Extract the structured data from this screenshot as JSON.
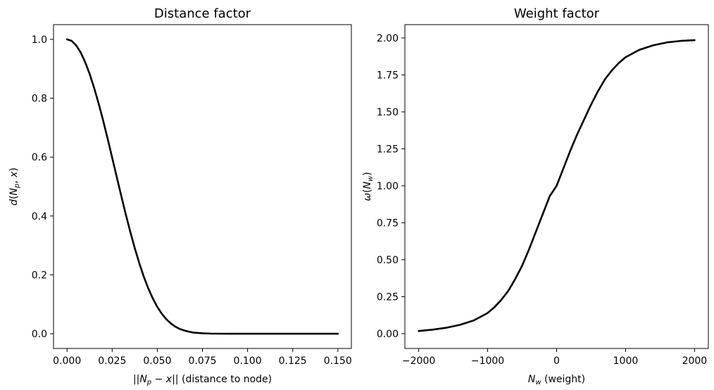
{
  "chart_data": [
    {
      "type": "line",
      "title": "Distance factor",
      "xlabel_parts": [
        {
          "t": "||",
          "style": "normal"
        },
        {
          "t": "N",
          "style": "italic"
        },
        {
          "t": "p",
          "style": "sub"
        },
        {
          "t": " − ",
          "style": "normal"
        },
        {
          "t": "x",
          "style": "italic"
        },
        {
          "t": "|| (distance to node)",
          "style": "normal"
        }
      ],
      "ylabel_parts": [
        {
          "t": "d",
          "style": "italic"
        },
        {
          "t": "(",
          "style": "normal"
        },
        {
          "t": "N",
          "style": "italic"
        },
        {
          "t": "p",
          "style": "sub"
        },
        {
          "t": ", ",
          "style": "normal"
        },
        {
          "t": "x",
          "style": "italic"
        },
        {
          "t": ")",
          "style": "normal"
        }
      ],
      "xlim": [
        -0.0075,
        0.1575
      ],
      "ylim": [
        -0.05,
        1.05
      ],
      "xticks": [
        0,
        0.025,
        0.05,
        0.075,
        0.1,
        0.125,
        0.15
      ],
      "xtick_labels": [
        "0.000",
        "0.025",
        "0.050",
        "0.075",
        "0.100",
        "0.125",
        "0.150"
      ],
      "yticks": [
        0,
        0.2,
        0.4,
        0.6,
        0.8,
        1.0
      ],
      "ytick_labels": [
        "0.0",
        "0.2",
        "0.4",
        "0.6",
        "0.8",
        "1.0"
      ],
      "grid": false,
      "color": "#000000",
      "series": [
        {
          "x": [
            0,
            0.0025,
            0.005,
            0.0075,
            0.01,
            0.0125,
            0.015,
            0.0175,
            0.02,
            0.0225,
            0.025,
            0.0275,
            0.03,
            0.0325,
            0.035,
            0.0375,
            0.04,
            0.0425,
            0.045,
            0.0475,
            0.05,
            0.0525,
            0.055,
            0.0575,
            0.06,
            0.0625,
            0.065,
            0.0675,
            0.07,
            0.075,
            0.08,
            0.085,
            0.09,
            0.1,
            0.11,
            0.12,
            0.13,
            0.14,
            0.15
          ],
          "y": [
            1.0,
            0.995,
            0.98,
            0.956,
            0.923,
            0.883,
            0.835,
            0.782,
            0.724,
            0.662,
            0.598,
            0.533,
            0.469,
            0.406,
            0.347,
            0.291,
            0.24,
            0.194,
            0.154,
            0.12,
            0.091,
            0.068,
            0.049,
            0.035,
            0.024,
            0.016,
            0.011,
            0.007,
            0.004,
            0.0015,
            0.0005,
            0.0002,
            0.0001,
            0,
            0,
            0,
            0,
            0,
            0
          ]
        }
      ]
    },
    {
      "type": "line",
      "title": "Weight factor",
      "xlabel_parts": [
        {
          "t": "N",
          "style": "italic"
        },
        {
          "t": "w",
          "style": "sub"
        },
        {
          "t": " (weight)",
          "style": "normal"
        }
      ],
      "ylabel_parts": [
        {
          "t": "ω",
          "style": "italic"
        },
        {
          "t": "(",
          "style": "normal"
        },
        {
          "t": "N",
          "style": "italic"
        },
        {
          "t": "w",
          "style": "sub"
        },
        {
          "t": ")",
          "style": "normal"
        }
      ],
      "xlim": [
        -2200,
        2200
      ],
      "ylim": [
        -0.1,
        2.09
      ],
      "xticks": [
        -2000,
        -1000,
        0,
        1000,
        2000
      ],
      "xtick_labels": [
        "−2000",
        "−1000",
        "0",
        "1000",
        "2000"
      ],
      "yticks": [
        0,
        0.25,
        0.5,
        0.75,
        1.0,
        1.25,
        1.5,
        1.75,
        2.0
      ],
      "ytick_labels": [
        "0.00",
        "0.25",
        "0.50",
        "0.75",
        "1.00",
        "1.25",
        "1.50",
        "1.75",
        "2.00"
      ],
      "grid": false,
      "color": "#000000",
      "series": [
        {
          "x": [
            -2000,
            -1800,
            -1600,
            -1400,
            -1200,
            -1000,
            -900,
            -800,
            -700,
            -600,
            -500,
            -400,
            -300,
            -200,
            -100,
            0,
            100,
            200,
            300,
            400,
            500,
            600,
            700,
            800,
            900,
            1000,
            1200,
            1400,
            1600,
            1800,
            2000
          ],
          "y": [
            0.018,
            0.027,
            0.04,
            0.06,
            0.09,
            0.14,
            0.18,
            0.23,
            0.29,
            0.37,
            0.46,
            0.57,
            0.69,
            0.81,
            0.93,
            1.0,
            1.12,
            1.24,
            1.35,
            1.45,
            1.55,
            1.64,
            1.72,
            1.78,
            1.83,
            1.87,
            1.92,
            1.95,
            1.97,
            1.98,
            1.985
          ]
        }
      ]
    }
  ]
}
